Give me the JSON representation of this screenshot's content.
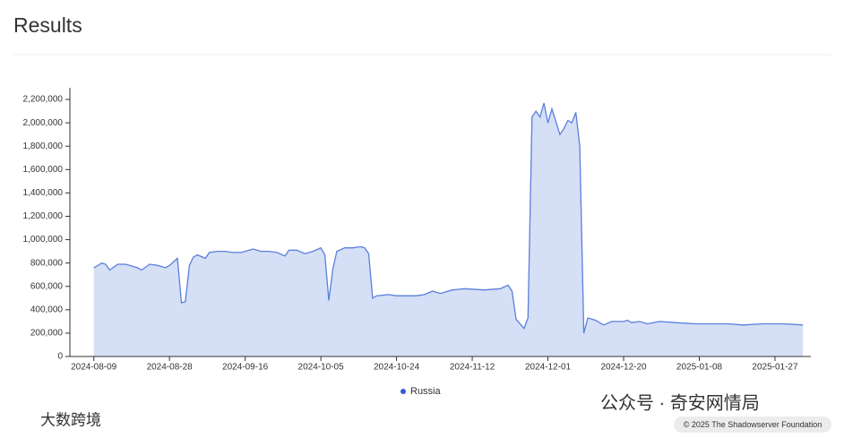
{
  "header": {
    "title": "Results"
  },
  "chart_data": {
    "type": "area",
    "x": [
      "2024-08-09",
      "2024-08-11",
      "2024-08-12",
      "2024-08-13",
      "2024-08-15",
      "2024-08-17",
      "2024-08-20",
      "2024-08-21",
      "2024-08-23",
      "2024-08-25",
      "2024-08-27",
      "2024-08-28",
      "2024-08-30",
      "2024-08-31",
      "2024-09-01",
      "2024-09-02",
      "2024-09-03",
      "2024-09-04",
      "2024-09-06",
      "2024-09-07",
      "2024-09-09",
      "2024-09-11",
      "2024-09-13",
      "2024-09-15",
      "2024-09-18",
      "2024-09-20",
      "2024-09-22",
      "2024-09-24",
      "2024-09-26",
      "2024-09-27",
      "2024-09-29",
      "2024-10-01",
      "2024-10-03",
      "2024-10-05",
      "2024-10-06",
      "2024-10-07",
      "2024-10-08",
      "2024-10-09",
      "2024-10-11",
      "2024-10-13",
      "2024-10-15",
      "2024-10-16",
      "2024-10-17",
      "2024-10-18",
      "2024-10-19",
      "2024-10-22",
      "2024-10-24",
      "2024-10-29",
      "2024-10-31",
      "2024-11-02",
      "2024-11-04",
      "2024-11-07",
      "2024-11-10",
      "2024-11-15",
      "2024-11-19",
      "2024-11-21",
      "2024-11-22",
      "2024-11-23",
      "2024-11-25",
      "2024-11-26",
      "2024-11-27",
      "2024-11-28",
      "2024-11-29",
      "2024-11-30",
      "2024-12-01",
      "2024-12-02",
      "2024-12-04",
      "2024-12-05",
      "2024-12-06",
      "2024-12-07",
      "2024-12-08",
      "2024-12-09",
      "2024-12-10",
      "2024-12-11",
      "2024-12-12",
      "2024-12-13",
      "2024-12-14",
      "2024-12-15",
      "2024-12-17",
      "2024-12-20",
      "2024-12-21",
      "2024-12-22",
      "2024-12-24",
      "2024-12-26",
      "2024-12-29",
      "2025-01-02",
      "2025-01-07",
      "2025-01-10",
      "2025-01-15",
      "2025-01-19",
      "2025-01-24",
      "2025-01-29",
      "2025-02-03"
    ],
    "series": [
      {
        "name": "Russia",
        "color": "#5b7fdb",
        "fill": "#d5dff5",
        "values": [
          760000,
          800000,
          790000,
          740000,
          790000,
          790000,
          760000,
          740000,
          790000,
          780000,
          760000,
          780000,
          840000,
          460000,
          470000,
          780000,
          850000,
          870000,
          840000,
          890000,
          900000,
          900000,
          890000,
          890000,
          920000,
          900000,
          900000,
          890000,
          860000,
          910000,
          910000,
          880000,
          900000,
          930000,
          870000,
          480000,
          750000,
          900000,
          930000,
          930000,
          940000,
          930000,
          880000,
          500000,
          520000,
          530000,
          520000,
          520000,
          530000,
          560000,
          540000,
          570000,
          580000,
          570000,
          580000,
          610000,
          560000,
          320000,
          240000,
          330000,
          2050000,
          2100000,
          2050000,
          2170000,
          2000000,
          2120000,
          1900000,
          1950000,
          2020000,
          2000000,
          2090000,
          1800000,
          200000,
          330000,
          320000,
          310000,
          290000,
          270000,
          300000,
          300000,
          310000,
          290000,
          300000,
          280000,
          300000,
          290000,
          280000,
          280000,
          280000,
          270000,
          280000,
          280000,
          270000
        ]
      }
    ],
    "xlim": [
      "2024-08-03",
      "2025-02-05"
    ],
    "xticks": [
      "2024-08-09",
      "2024-08-28",
      "2024-09-16",
      "2024-10-05",
      "2024-10-24",
      "2024-11-12",
      "2024-12-01",
      "2024-12-20",
      "2025-01-08",
      "2025-01-27"
    ],
    "ylim": [
      0,
      2300000
    ],
    "yticks": [
      0,
      {
        "value": 200000,
        "label": "200,000"
      },
      {
        "value": 400000,
        "label": "400,000"
      },
      {
        "value": 600000,
        "label": "600,000"
      },
      {
        "value": 800000,
        "label": "800,000"
      },
      {
        "value": 1000000,
        "label": "1,000,000"
      },
      {
        "value": 1200000,
        "label": "1,200,000"
      },
      {
        "value": 1400000,
        "label": "1,400,000"
      },
      {
        "value": 1600000,
        "label": "1,600,000"
      },
      {
        "value": 1800000,
        "label": "1,800,000"
      },
      {
        "value": 2000000,
        "label": "2,000,000"
      },
      {
        "value": 2200000,
        "label": "2,200,000"
      }
    ],
    "legend": "bottom"
  },
  "watermarks": [
    "公众号 · 奇安网情局",
    "大数跨境"
  ],
  "footer": "© 2025 The Shadowserver Foundation"
}
